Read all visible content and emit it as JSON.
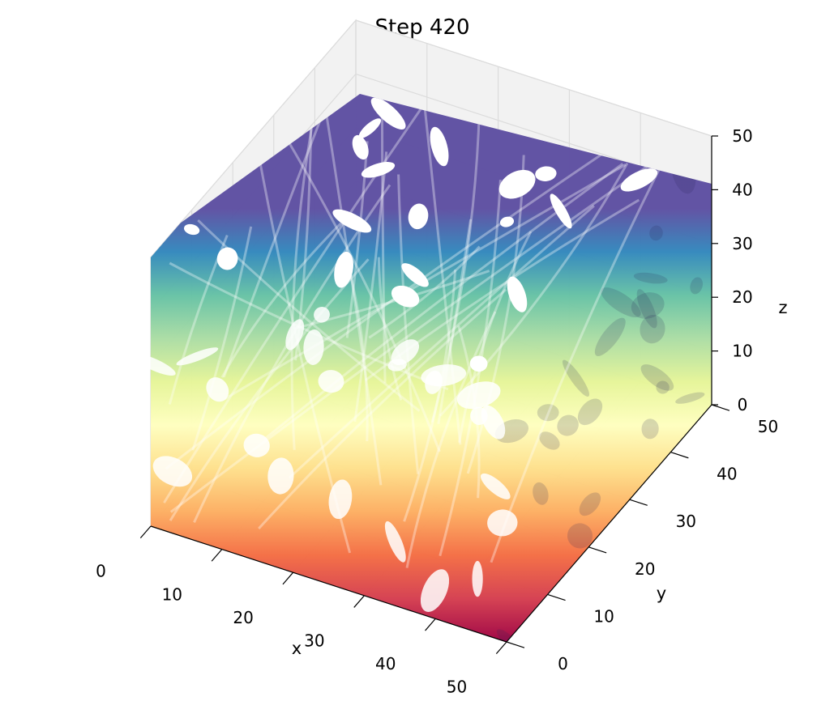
{
  "chart_data": {
    "type": "surface3d",
    "title": "Step 420",
    "xlabel": "x",
    "ylabel": "y",
    "zlabel": "z",
    "xlim": [
      0,
      50
    ],
    "ylim": [
      0,
      50
    ],
    "zlim": [
      0,
      50
    ],
    "x_ticks": [
      "0",
      "10",
      "20",
      "30",
      "40",
      "50"
    ],
    "y_ticks": [
      "0",
      "10",
      "20",
      "30",
      "40",
      "50"
    ],
    "z_ticks": [
      "0",
      "10",
      "20",
      "30",
      "40",
      "50"
    ],
    "grid": true,
    "colormap": "Spectral",
    "colormap_colors": [
      "#9e0142",
      "#d53e4f",
      "#f46d43",
      "#fdae61",
      "#fee08b",
      "#ffffbf",
      "#e6f598",
      "#abdda4",
      "#66c2a5",
      "#3288bd",
      "#5e4fa2"
    ],
    "pane_color": "#f2f2f2",
    "grid_color": "#dcdcdc"
  }
}
